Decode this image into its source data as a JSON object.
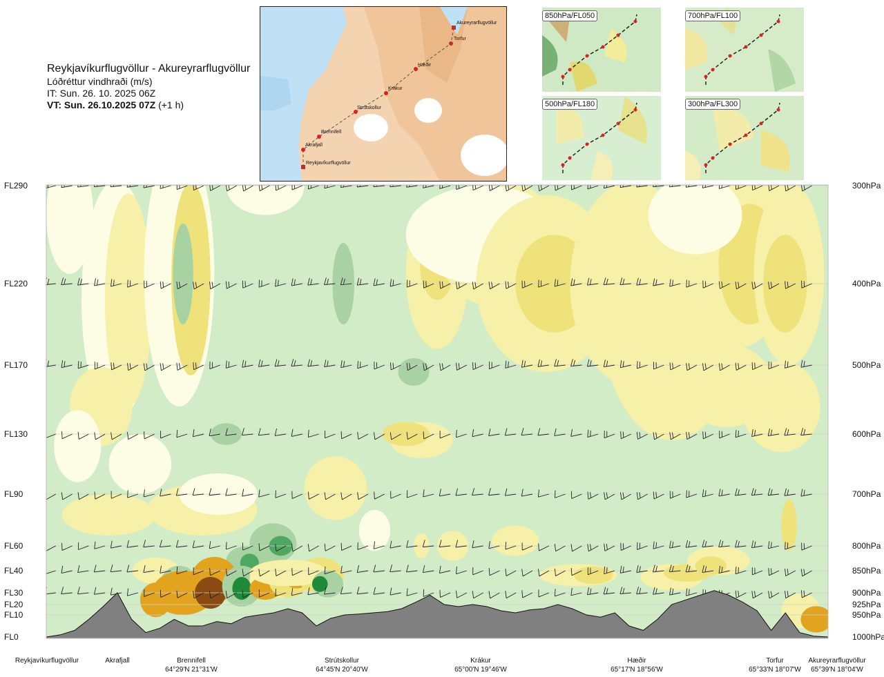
{
  "header": {
    "title": "Reykjavíkurflugvöllur - Akureyrarflugvöllur",
    "subtitle": "Lóðréttur vindhraði (m/s)",
    "it": "IT: Sun. 26. 10. 2025 06Z",
    "vt_bold": "VT: Sun. 26.10.2025 07Z",
    "vt_rest": "(+1 h)"
  },
  "route_map": {
    "points": [
      "Akureyrarflugvöllur",
      "Torfur",
      "Hæðir",
      "Krákur",
      "Strútskollur",
      "Brennifell",
      "Akrafjall",
      "Reykjavíkurflugvöllur"
    ]
  },
  "mini_maps": [
    "850hPa/FL050",
    "700hPa/FL100",
    "500hPa/FL180",
    "300hPa/FL300"
  ],
  "chart_data": {
    "type": "heatmap",
    "title": "Lóðréttur vindhraði (m/s)",
    "y_left_labels": [
      "FL290",
      "FL220",
      "FL170",
      "FL130",
      "FL90",
      "FL60",
      "FL40",
      "FL30",
      "FL20",
      "FL10",
      "FL0"
    ],
    "y_right_labels": [
      "300hPa",
      "400hPa",
      "500hPa",
      "600hPa",
      "700hPa",
      "800hPa",
      "850hPa",
      "900hPa",
      "925hPa",
      "950hPa",
      "1000hPa"
    ],
    "pressure_levels_hpa": [
      300,
      400,
      500,
      600,
      700,
      800,
      850,
      900,
      925,
      950,
      1000
    ],
    "route_points": [
      {
        "name": "Reykjavíkurflugvöllur",
        "coord": ""
      },
      {
        "name": "Akrafjall",
        "coord": ""
      },
      {
        "name": "Brennifell",
        "coord": "64°29'N 21°31'W"
      },
      {
        "name": "Strútskollur",
        "coord": "64°45'N 20°40'W"
      },
      {
        "name": "Krákur",
        "coord": "65°00'N 19°46'W"
      },
      {
        "name": "Hæðir",
        "coord": "65°17'N 18°56'W"
      },
      {
        "name": "Torfur",
        "coord": "65°33'N 18°07'W"
      },
      {
        "name": "Akureyrarflugvöllur",
        "coord": "65°39'N 18°04'W"
      }
    ],
    "route_fraction": [
      0.0,
      0.09,
      0.19,
      0.38,
      0.555,
      0.735,
      0.935,
      0.975
    ],
    "terrain_top_hpa": [
      1000,
      995,
      985,
      960,
      930,
      900,
      960,
      990,
      980,
      960,
      975,
      975,
      965,
      970,
      955,
      950,
      945,
      935,
      945,
      975,
      958,
      950,
      948,
      945,
      942,
      935,
      920,
      905,
      925,
      930,
      925,
      930,
      940,
      945,
      938,
      935,
      925,
      935,
      950,
      955,
      945,
      975,
      985,
      960,
      925,
      915,
      905,
      895,
      905,
      920,
      940,
      985,
      945,
      990,
      998,
      1000
    ],
    "levels": [
      -0.5,
      -0.25,
      -0.1,
      0.1,
      0.25,
      0.5,
      1.0
    ],
    "colors": {
      "strong_down": "#8a4a12",
      "down": "#e2a31e",
      "weak_down": "#f0e27a",
      "faint_down": "#f7f0a8",
      "neutral": "#fdfde6",
      "faint_up": "#d3ecc8",
      "weak_up": "#a8d2a2",
      "up": "#4fa861",
      "strong_up": "#1f8a3a",
      "terrain": "#808080",
      "grid": "#cfcfcf"
    },
    "legend": "none"
  }
}
